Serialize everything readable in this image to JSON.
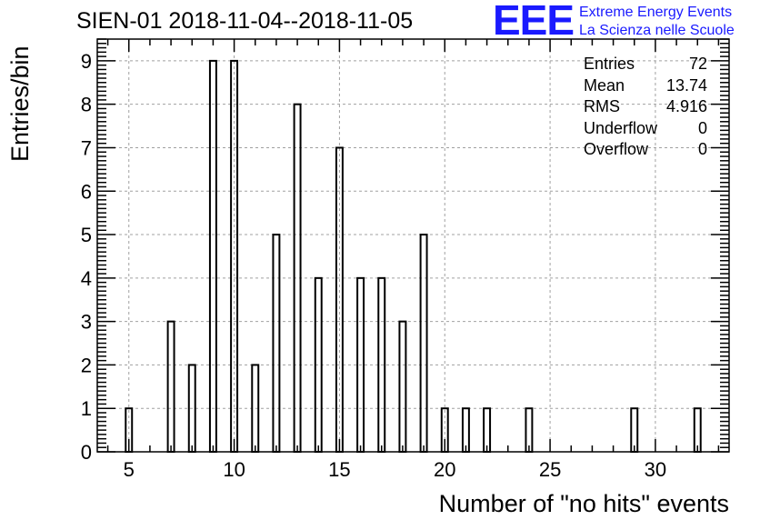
{
  "title": "SIEN-01 2018-11-04--2018-11-05",
  "logo": {
    "letters": "EEE",
    "line1": "Extreme Energy Events",
    "line2": "La Scienza nelle Scuole",
    "color": "#1a1aff"
  },
  "stats": [
    {
      "label": "Entries",
      "value": "72"
    },
    {
      "label": "Mean",
      "value": "13.74"
    },
    {
      "label": "RMS",
      "value": "4.916"
    },
    {
      "label": "Underflow",
      "value": "0"
    },
    {
      "label": "Overflow",
      "value": "0"
    }
  ],
  "chart_data": {
    "type": "bar",
    "title": "SIEN-01 2018-11-04--2018-11-05",
    "xlabel": "Number of \"no hits\" events",
    "ylabel": "Entries/bin",
    "xlim": [
      3.5,
      33.5
    ],
    "ylim": [
      0,
      9.5
    ],
    "x_ticks": [
      5,
      10,
      15,
      20,
      25,
      30
    ],
    "y_ticks": [
      0,
      1,
      2,
      3,
      4,
      5,
      6,
      7,
      8,
      9
    ],
    "grid": true,
    "bar_width": 0.3,
    "categories": [
      5,
      7,
      8,
      9,
      10,
      11,
      12,
      13,
      14,
      15,
      16,
      17,
      18,
      19,
      20,
      21,
      22,
      24,
      29,
      32
    ],
    "values": [
      1,
      3,
      2,
      9,
      9,
      2,
      5,
      8,
      4,
      7,
      4,
      4,
      3,
      5,
      1,
      1,
      1,
      1,
      1,
      1
    ]
  }
}
